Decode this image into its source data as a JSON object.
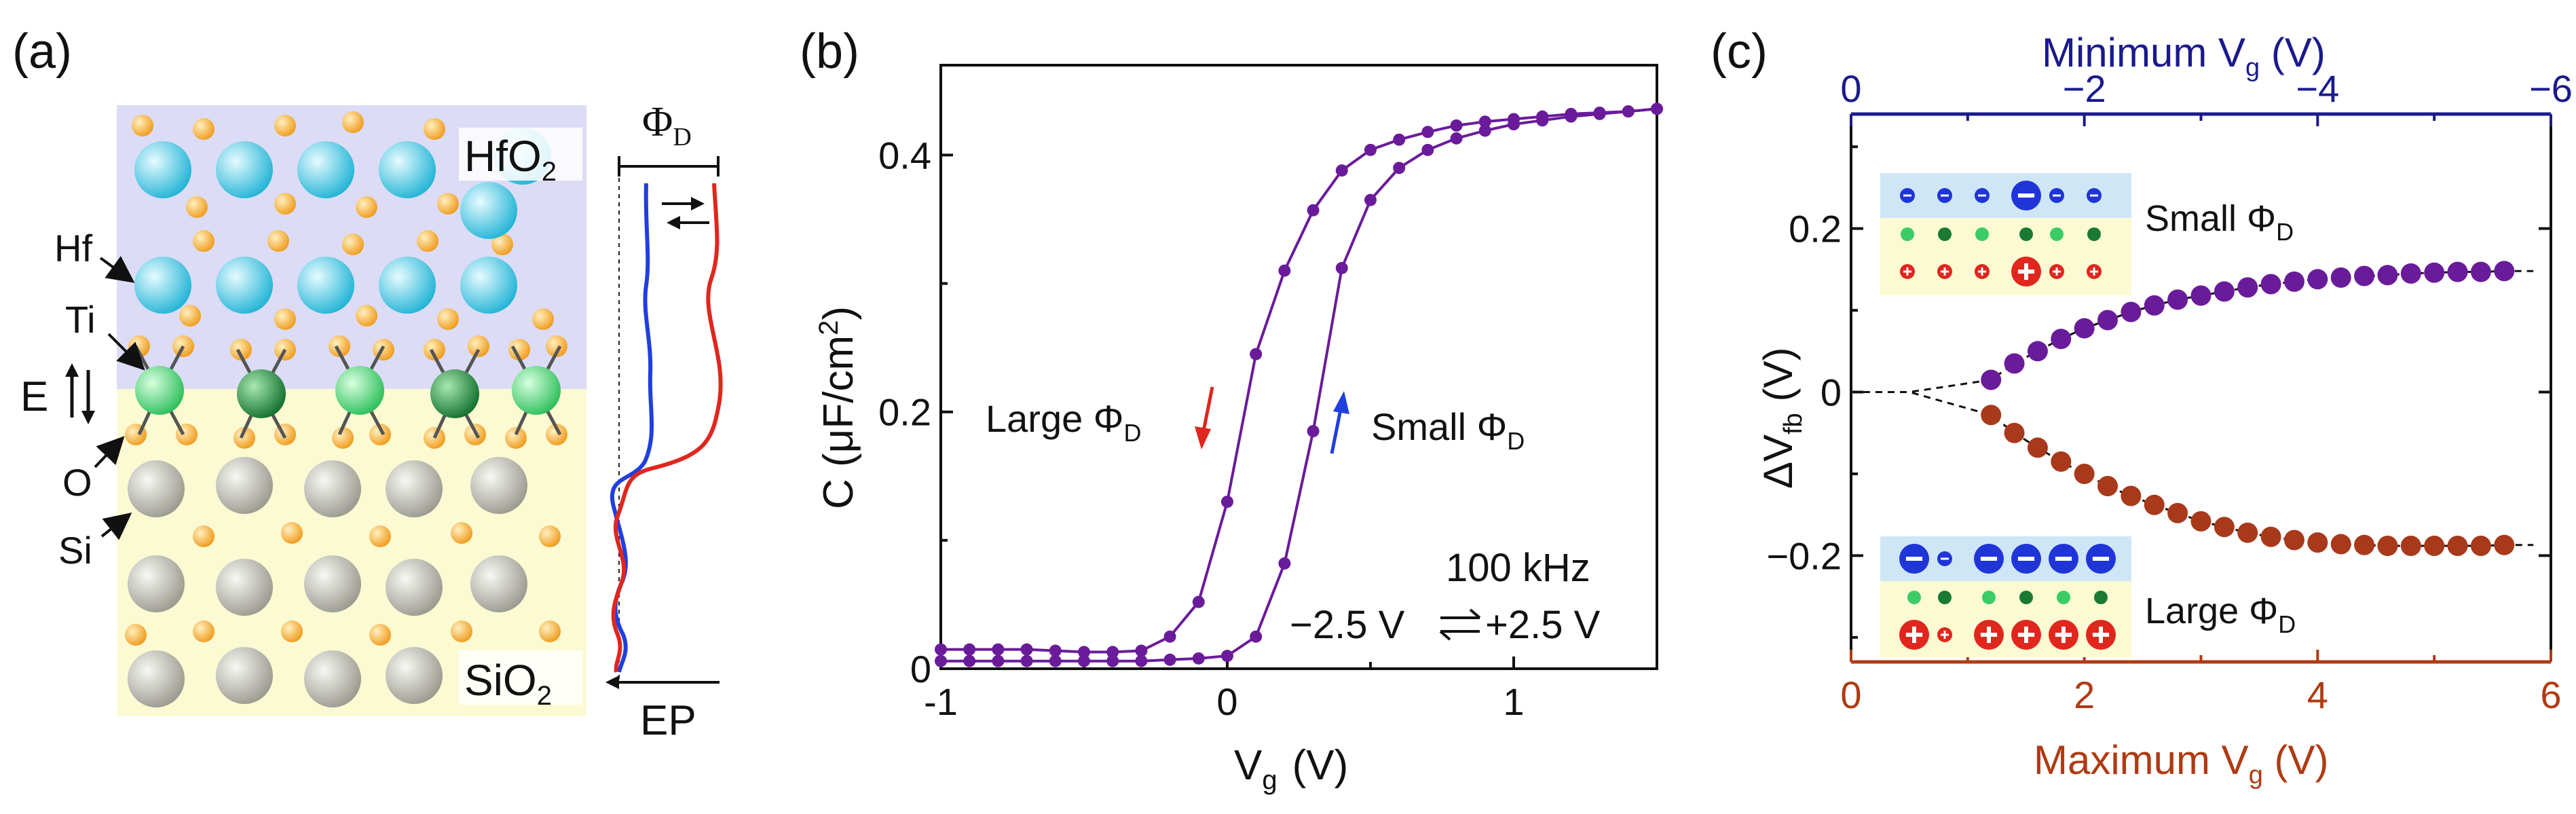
{
  "panel_a": {
    "label": "(a)",
    "hfo2": "HfO",
    "hfo2_sub": "2",
    "sio2": "SiO",
    "sio2_sub": "2",
    "atom_hf": "Hf",
    "atom_ti": "Ti",
    "atom_o": "O",
    "atom_si": "Si",
    "field": "E",
    "phi_symbol": "Φ",
    "phi_sub": "D",
    "ep": "EP",
    "colors": {
      "top_bg": "#dcdcf6",
      "bottom_bg": "#fbfad2",
      "blue": "#1f3fe0",
      "red": "#e0261d"
    }
  },
  "chart_data": [
    {
      "id": "b",
      "type": "line",
      "label": "(b)",
      "xlabel_main": "V",
      "xlabel_sub": "g",
      "xlabel_unit": "(V)",
      "ylabel": "C  (μF/cm",
      "ylabel_sup": "2",
      "ylabel_end": ")",
      "xlim": [
        -1,
        1.5
      ],
      "ylim": [
        0,
        0.47
      ],
      "xticks": [
        -1,
        0,
        1
      ],
      "xtick_labels": [
        "-1",
        "0",
        "1"
      ],
      "yticks": [
        0,
        0.2,
        0.4
      ],
      "ytick_labels": [
        "0",
        "0.2",
        "0.4"
      ],
      "color": "#6a1b9a",
      "series": [
        {
          "x": [
            -1.0,
            -0.9,
            -0.8,
            -0.7,
            -0.6,
            -0.5,
            -0.4,
            -0.3,
            -0.2,
            -0.1,
            0.0,
            0.1,
            0.2,
            0.3,
            0.4,
            0.5,
            0.6,
            0.7,
            0.8,
            0.9,
            1.0,
            1.1,
            1.2,
            1.3,
            1.4,
            1.5
          ],
          "y": [
            0.015,
            0.015,
            0.015,
            0.015,
            0.014,
            0.013,
            0.013,
            0.014,
            0.025,
            0.052,
            0.13,
            0.245,
            0.31,
            0.357,
            0.388,
            0.404,
            0.412,
            0.418,
            0.423,
            0.426,
            0.428,
            0.43,
            0.432,
            0.433,
            0.434,
            0.436
          ]
        },
        {
          "x": [
            -1.0,
            -0.9,
            -0.8,
            -0.7,
            -0.6,
            -0.5,
            -0.4,
            -0.3,
            -0.2,
            -0.1,
            0.0,
            0.1,
            0.2,
            0.3,
            0.4,
            0.5,
            0.6,
            0.7,
            0.8,
            0.9,
            1.0,
            1.1,
            1.2,
            1.3,
            1.4,
            1.5
          ],
          "y": [
            0.006,
            0.006,
            0.006,
            0.006,
            0.006,
            0.006,
            0.006,
            0.006,
            0.007,
            0.008,
            0.01,
            0.025,
            0.082,
            0.185,
            0.312,
            0.365,
            0.39,
            0.404,
            0.413,
            0.419,
            0.424,
            0.427,
            0.43,
            0.432,
            0.434,
            0.436
          ]
        }
      ],
      "annotations": {
        "large": "Large Φ",
        "large_sub": "D",
        "small": "Small Φ",
        "small_sub": "D",
        "freq": "100 kHz",
        "sweep_left": "−2.5 V",
        "sweep_right": "+2.5 V"
      },
      "arrow_colors": {
        "large": "#e0261d",
        "small": "#1f3fe0"
      }
    },
    {
      "id": "c",
      "type": "scatter",
      "label": "(c)",
      "xlabel_bottom": "Maximum V",
      "xlabel_bottom_sub": "g",
      "xlabel_bottom_unit": " (V)",
      "xlabel_top": "Minimum V",
      "xlabel_top_sub": "g",
      "xlabel_top_unit": " (V)",
      "ylabel": "ΔV",
      "ylabel_sub": "fb",
      "ylabel_unit": "  (V)",
      "xlim": [
        0,
        6
      ],
      "ylim": [
        -0.33,
        0.34
      ],
      "xticks": [
        0,
        2,
        4,
        6
      ],
      "xtick_labels": [
        "0",
        "2",
        "4",
        "6"
      ],
      "top_xtick_labels": [
        "0",
        "−2",
        "−4",
        "−6"
      ],
      "yticks": [
        -0.2,
        0,
        0.2
      ],
      "ytick_labels": [
        "−0.2",
        "0",
        "0.2"
      ],
      "bottom_axis_color": "#b03a12",
      "top_axis_color": "#1a1a8c",
      "series": [
        {
          "color": "#6a1b9a",
          "x": [
            1.2,
            1.4,
            1.6,
            1.8,
            2.0,
            2.2,
            2.4,
            2.6,
            2.8,
            3.0,
            3.2,
            3.4,
            3.6,
            3.8,
            4.0,
            4.2,
            4.4,
            4.6,
            4.8,
            5.0,
            5.2,
            5.4,
            5.6
          ],
          "y": [
            0.015,
            0.035,
            0.05,
            0.065,
            0.078,
            0.088,
            0.098,
            0.106,
            0.113,
            0.118,
            0.123,
            0.128,
            0.132,
            0.135,
            0.138,
            0.14,
            0.142,
            0.143,
            0.145,
            0.146,
            0.147,
            0.147,
            0.148
          ]
        },
        {
          "color": "#a8391a",
          "x": [
            1.2,
            1.4,
            1.6,
            1.8,
            2.0,
            2.2,
            2.4,
            2.6,
            2.8,
            3.0,
            3.2,
            3.4,
            3.6,
            3.8,
            4.0,
            4.2,
            4.4,
            4.6,
            4.8,
            5.0,
            5.2,
            5.4,
            5.6
          ],
          "y": [
            -0.028,
            -0.05,
            -0.068,
            -0.085,
            -0.1,
            -0.115,
            -0.127,
            -0.138,
            -0.148,
            -0.158,
            -0.165,
            -0.172,
            -0.177,
            -0.181,
            -0.184,
            -0.186,
            -0.187,
            -0.188,
            -0.188,
            -0.188,
            -0.188,
            -0.188,
            -0.187
          ]
        }
      ],
      "inset_small": "Small Φ",
      "inset_small_sub": "D",
      "inset_large": "Large Φ",
      "inset_large_sub": "D"
    }
  ]
}
